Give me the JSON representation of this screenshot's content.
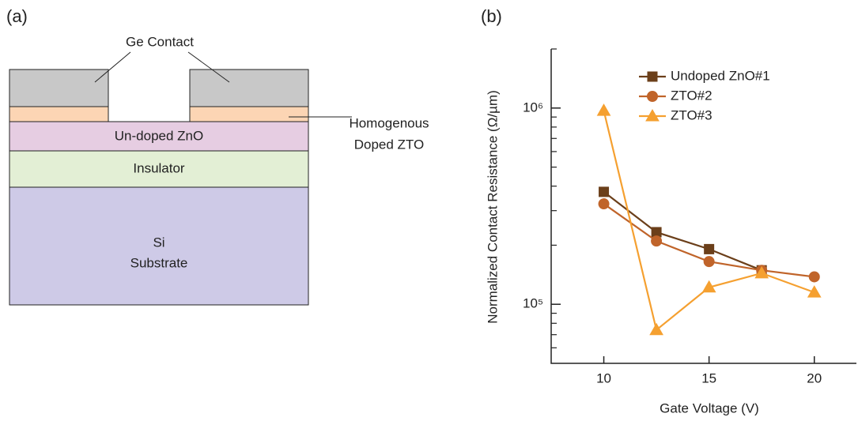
{
  "diagram": {
    "panel_label": "(a)",
    "layers": {
      "contact": "Ge Contact",
      "doped_lines": [
        "Homogenous",
        "Doped ZTO"
      ],
      "zno": "Un-doped ZnO",
      "insulator": "Insulator",
      "substrate_lines": [
        "Si",
        "Substrate"
      ]
    }
  },
  "chart_data": {
    "type": "line",
    "panel_label": "(b)",
    "x_label": "Gate Voltage (V)",
    "y_label": "Normalized Contact Resistance (Ω/µm)",
    "x": [
      10,
      12.5,
      15,
      17.5,
      20
    ],
    "series": [
      {
        "name": "Undoped ZnO#1",
        "color": "#6b3f1a",
        "marker": "square",
        "values": [
          374000,
          233000,
          191000,
          149000,
          null
        ]
      },
      {
        "name": "ZTO#2",
        "color": "#c0642a",
        "marker": "circle",
        "values": [
          325000,
          210000,
          165000,
          149000,
          138000
        ]
      },
      {
        "name": "ZTO#3",
        "color": "#f5a030",
        "marker": "triangle",
        "values": [
          970000,
          74000,
          122000,
          144000,
          115000
        ]
      }
    ],
    "xlim": [
      7.5,
      22
    ],
    "xticks": [
      10,
      15,
      20
    ],
    "ylim": [
      50000,
      2000000
    ],
    "log_y": true,
    "yticks": [
      {
        "value": 100000,
        "label": "10⁵"
      },
      {
        "value": 1000000,
        "label": "10⁶"
      }
    ],
    "minor_yticks": [
      60000,
      70000,
      80000,
      90000,
      200000,
      300000,
      400000,
      500000,
      600000,
      700000,
      800000,
      900000,
      2000000
    ],
    "legend": "upper right"
  }
}
